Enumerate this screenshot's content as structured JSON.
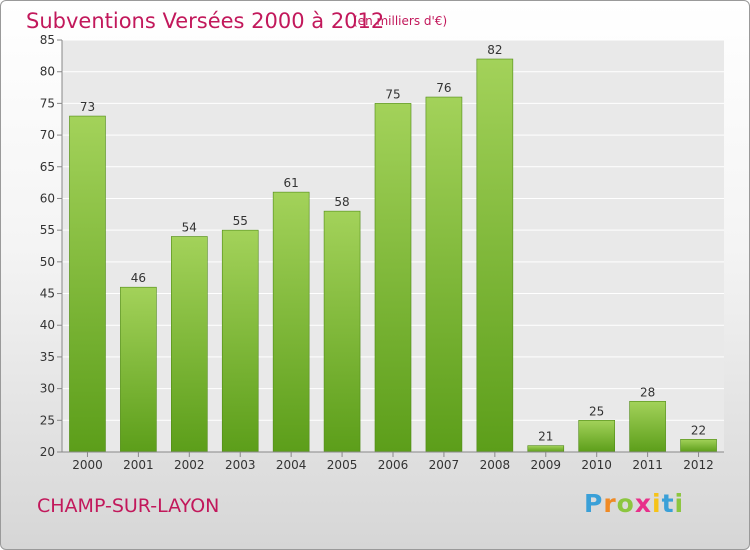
{
  "chart_data": {
    "type": "bar",
    "title": "Subventions Versées 2000 à 2012",
    "subtitle": "(en milliers d'€)",
    "categories": [
      "2000",
      "2001",
      "2002",
      "2003",
      "2004",
      "2005",
      "2006",
      "2007",
      "2008",
      "2009",
      "2010",
      "2011",
      "2012"
    ],
    "values": [
      73,
      46,
      54,
      55,
      61,
      58,
      75,
      76,
      82,
      21,
      25,
      28,
      22
    ],
    "ylim": [
      20,
      85
    ],
    "yticks": [
      20,
      25,
      30,
      35,
      40,
      45,
      50,
      55,
      60,
      65,
      70,
      75,
      80,
      85
    ],
    "grid": true,
    "colors": {
      "bar_top": "#a3d25a",
      "bar_bottom": "#5c9e1a",
      "bar_edge": "#4f8a15",
      "accent": "#c2185b"
    }
  },
  "footer": {
    "place": "CHAMP-SUR-LAYON",
    "logo_letters": [
      "P",
      "r",
      "o",
      "x",
      "i",
      "t",
      "i"
    ],
    "logo_colors": [
      "#3aa0d8",
      "#f08a24",
      "#8cc63f",
      "#e8308a",
      "#f6c318",
      "#3aa0d8",
      "#8cc63f"
    ]
  }
}
